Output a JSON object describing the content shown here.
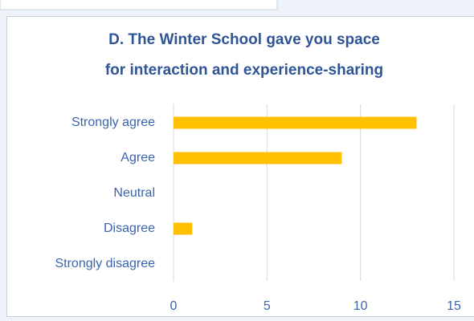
{
  "chart_data": {
    "type": "bar",
    "orientation": "horizontal",
    "title": [
      "D. The Winter School gave you space",
      "for interaction and experience-sharing"
    ],
    "categories": [
      "Strongly agree",
      "Agree",
      "Neutral",
      "Disagree",
      "Strongly disagree"
    ],
    "values": [
      13,
      9,
      0,
      1,
      0
    ],
    "color": "#ffc000",
    "xlim": [
      0,
      15
    ],
    "xticks": [
      0,
      5,
      10,
      15
    ],
    "grid": true
  }
}
